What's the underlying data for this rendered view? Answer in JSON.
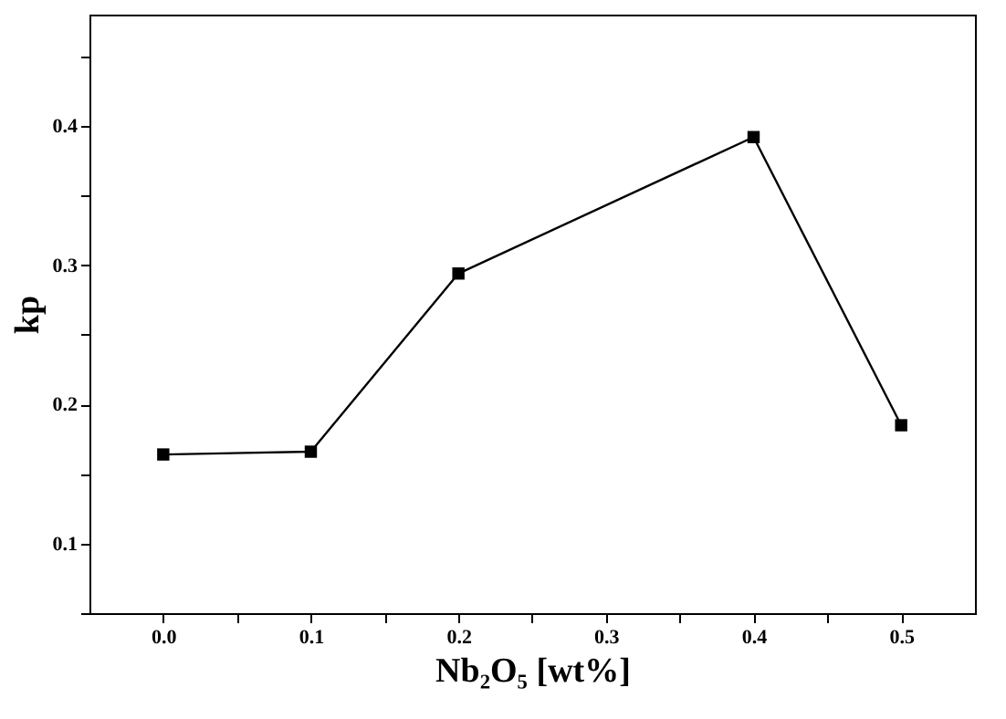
{
  "chart_data": {
    "type": "line",
    "xlabel": "Nb₂O₅ [wt%]",
    "ylabel": "kp",
    "x": [
      0.0,
      0.1,
      0.2,
      0.4,
      0.5
    ],
    "series": [
      {
        "color": "#000000",
        "values": [
          0.164,
          0.166,
          0.294,
          0.392,
          0.185
        ]
      }
    ],
    "xlim": [
      -0.05,
      0.55
    ],
    "xticks": [
      {
        "value": 0,
        "label": "0.0"
      },
      {
        "value": 0.05,
        "label": null
      },
      0.1,
      {
        "value": 0.15,
        "label": null
      },
      0.2,
      {
        "value": 0.25,
        "label": null
      },
      0.3,
      {
        "value": 0.35,
        "label": null
      },
      0.4,
      {
        "value": 0.45,
        "label": null
      },
      0.5
    ],
    "ylim": [
      0.05,
      0.48
    ],
    "yticks": [
      {
        "value": 0.05,
        "label": null
      },
      0.1,
      {
        "value": 0.15,
        "label": null
      },
      0.2,
      {
        "value": 0.25,
        "label": null
      },
      0.3,
      {
        "value": 0.35,
        "label": null
      },
      0.4,
      {
        "value": 0.45,
        "label": null
      }
    ],
    "marker": "square",
    "line_style": "solid",
    "grid": false
  }
}
